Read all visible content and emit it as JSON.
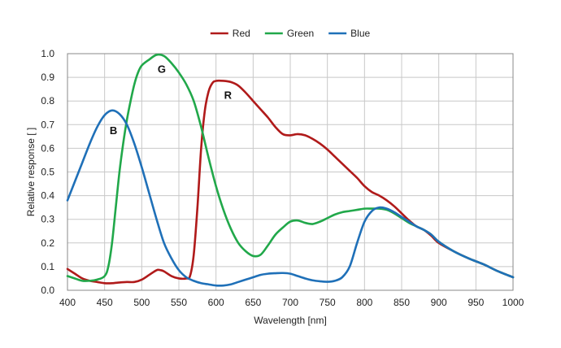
{
  "chart_data": {
    "type": "line",
    "xlabel": "Wavelength [nm]",
    "ylabel": "Relative response [ ]",
    "xlim": [
      400,
      1000
    ],
    "ylim": [
      0,
      1.0
    ],
    "x_ticks": [
      400,
      450,
      500,
      550,
      600,
      650,
      700,
      750,
      800,
      850,
      900,
      950,
      1000
    ],
    "y_ticks": [
      0.0,
      0.1,
      0.2,
      0.3,
      0.4,
      0.5,
      0.6,
      0.7,
      0.8,
      0.9,
      1.0
    ],
    "grid": true,
    "legend_position": "top-center",
    "series": [
      {
        "name": "Red",
        "color": "#b01a1a",
        "points": [
          [
            400,
            0.09
          ],
          [
            410,
            0.07
          ],
          [
            420,
            0.05
          ],
          [
            430,
            0.04
          ],
          [
            440,
            0.035
          ],
          [
            450,
            0.03
          ],
          [
            460,
            0.03
          ],
          [
            470,
            0.033
          ],
          [
            480,
            0.035
          ],
          [
            490,
            0.035
          ],
          [
            500,
            0.045
          ],
          [
            510,
            0.065
          ],
          [
            520,
            0.085
          ],
          [
            525,
            0.085
          ],
          [
            530,
            0.08
          ],
          [
            540,
            0.06
          ],
          [
            550,
            0.05
          ],
          [
            560,
            0.05
          ],
          [
            565,
            0.06
          ],
          [
            570,
            0.15
          ],
          [
            575,
            0.35
          ],
          [
            580,
            0.6
          ],
          [
            585,
            0.76
          ],
          [
            590,
            0.84
          ],
          [
            595,
            0.875
          ],
          [
            600,
            0.885
          ],
          [
            610,
            0.885
          ],
          [
            620,
            0.88
          ],
          [
            630,
            0.865
          ],
          [
            640,
            0.835
          ],
          [
            650,
            0.8
          ],
          [
            660,
            0.765
          ],
          [
            670,
            0.73
          ],
          [
            680,
            0.69
          ],
          [
            690,
            0.66
          ],
          [
            700,
            0.655
          ],
          [
            710,
            0.66
          ],
          [
            720,
            0.655
          ],
          [
            730,
            0.64
          ],
          [
            740,
            0.62
          ],
          [
            750,
            0.595
          ],
          [
            760,
            0.565
          ],
          [
            770,
            0.535
          ],
          [
            780,
            0.505
          ],
          [
            790,
            0.475
          ],
          [
            800,
            0.44
          ],
          [
            810,
            0.415
          ],
          [
            820,
            0.4
          ],
          [
            830,
            0.38
          ],
          [
            840,
            0.355
          ],
          [
            850,
            0.325
          ],
          [
            860,
            0.295
          ],
          [
            870,
            0.27
          ],
          [
            880,
            0.255
          ],
          [
            890,
            0.23
          ],
          [
            900,
            0.2
          ],
          [
            920,
            0.165
          ],
          [
            940,
            0.135
          ],
          [
            960,
            0.11
          ],
          [
            980,
            0.08
          ],
          [
            1000,
            0.055
          ]
        ]
      },
      {
        "name": "Green",
        "color": "#21a84a",
        "points": [
          [
            400,
            0.06
          ],
          [
            410,
            0.05
          ],
          [
            420,
            0.04
          ],
          [
            430,
            0.04
          ],
          [
            440,
            0.045
          ],
          [
            450,
            0.06
          ],
          [
            455,
            0.1
          ],
          [
            460,
            0.2
          ],
          [
            465,
            0.35
          ],
          [
            470,
            0.5
          ],
          [
            475,
            0.62
          ],
          [
            480,
            0.72
          ],
          [
            485,
            0.8
          ],
          [
            490,
            0.87
          ],
          [
            495,
            0.92
          ],
          [
            500,
            0.95
          ],
          [
            510,
            0.975
          ],
          [
            520,
            0.995
          ],
          [
            530,
            0.99
          ],
          [
            540,
            0.96
          ],
          [
            550,
            0.92
          ],
          [
            560,
            0.87
          ],
          [
            570,
            0.8
          ],
          [
            580,
            0.69
          ],
          [
            590,
            0.56
          ],
          [
            600,
            0.44
          ],
          [
            610,
            0.34
          ],
          [
            620,
            0.26
          ],
          [
            630,
            0.2
          ],
          [
            640,
            0.165
          ],
          [
            650,
            0.145
          ],
          [
            660,
            0.15
          ],
          [
            670,
            0.19
          ],
          [
            680,
            0.235
          ],
          [
            690,
            0.265
          ],
          [
            700,
            0.29
          ],
          [
            710,
            0.295
          ],
          [
            720,
            0.285
          ],
          [
            730,
            0.28
          ],
          [
            740,
            0.29
          ],
          [
            750,
            0.305
          ],
          [
            760,
            0.32
          ],
          [
            770,
            0.33
          ],
          [
            780,
            0.335
          ],
          [
            790,
            0.34
          ],
          [
            800,
            0.345
          ],
          [
            810,
            0.345
          ],
          [
            820,
            0.345
          ],
          [
            830,
            0.34
          ],
          [
            840,
            0.325
          ],
          [
            850,
            0.305
          ],
          [
            860,
            0.285
          ],
          [
            870,
            0.27
          ],
          [
            880,
            0.255
          ],
          [
            890,
            0.235
          ],
          [
            900,
            0.205
          ],
          [
            920,
            0.165
          ],
          [
            940,
            0.135
          ],
          [
            960,
            0.11
          ],
          [
            980,
            0.08
          ],
          [
            1000,
            0.055
          ]
        ]
      },
      {
        "name": "Blue",
        "color": "#1f70b8",
        "points": [
          [
            400,
            0.38
          ],
          [
            410,
            0.46
          ],
          [
            420,
            0.54
          ],
          [
            430,
            0.62
          ],
          [
            440,
            0.69
          ],
          [
            450,
            0.74
          ],
          [
            460,
            0.76
          ],
          [
            470,
            0.745
          ],
          [
            480,
            0.7
          ],
          [
            490,
            0.62
          ],
          [
            500,
            0.52
          ],
          [
            510,
            0.41
          ],
          [
            520,
            0.3
          ],
          [
            530,
            0.2
          ],
          [
            540,
            0.135
          ],
          [
            550,
            0.085
          ],
          [
            560,
            0.055
          ],
          [
            570,
            0.04
          ],
          [
            580,
            0.03
          ],
          [
            590,
            0.025
          ],
          [
            600,
            0.02
          ],
          [
            610,
            0.02
          ],
          [
            620,
            0.025
          ],
          [
            630,
            0.035
          ],
          [
            640,
            0.045
          ],
          [
            650,
            0.055
          ],
          [
            660,
            0.065
          ],
          [
            670,
            0.07
          ],
          [
            680,
            0.072
          ],
          [
            690,
            0.073
          ],
          [
            700,
            0.07
          ],
          [
            710,
            0.06
          ],
          [
            720,
            0.05
          ],
          [
            730,
            0.042
          ],
          [
            740,
            0.038
          ],
          [
            750,
            0.036
          ],
          [
            760,
            0.04
          ],
          [
            770,
            0.055
          ],
          [
            780,
            0.1
          ],
          [
            790,
            0.2
          ],
          [
            800,
            0.29
          ],
          [
            810,
            0.335
          ],
          [
            820,
            0.35
          ],
          [
            830,
            0.345
          ],
          [
            840,
            0.33
          ],
          [
            850,
            0.31
          ],
          [
            860,
            0.29
          ],
          [
            870,
            0.27
          ],
          [
            880,
            0.255
          ],
          [
            890,
            0.235
          ],
          [
            900,
            0.205
          ],
          [
            920,
            0.165
          ],
          [
            940,
            0.135
          ],
          [
            960,
            0.11
          ],
          [
            980,
            0.08
          ],
          [
            1000,
            0.055
          ]
        ]
      }
    ],
    "annotations": [
      {
        "text": "B",
        "x": 462,
        "y": 0.66
      },
      {
        "text": "G",
        "x": 527,
        "y": 0.92
      },
      {
        "text": "R",
        "x": 616,
        "y": 0.81
      }
    ]
  }
}
